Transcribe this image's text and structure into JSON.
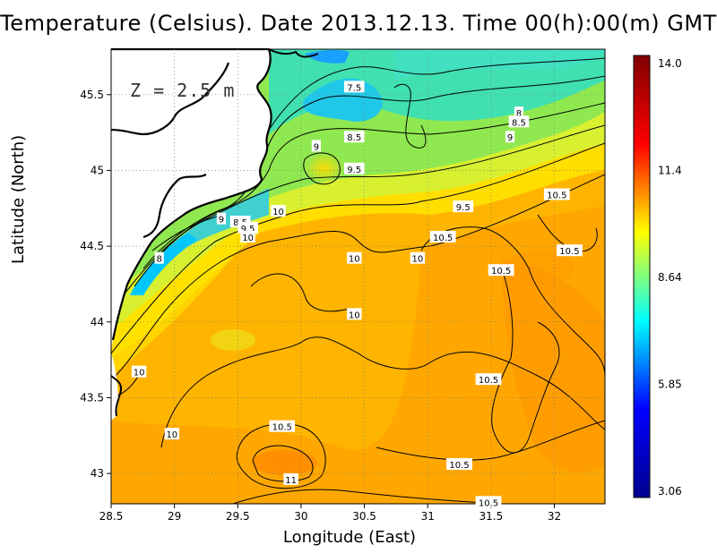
{
  "title": "Temperature (Celsius). Date 2013.12.13. Time 00(h):00(m)  GMT",
  "depth_label": "Z  =  2.5  m",
  "xlabel": "Longitude (East)",
  "ylabel": "Latitude (North)",
  "x_ticks": [
    "28.5",
    "29",
    "29.5",
    "30",
    "30.5",
    "31",
    "31.5",
    "32"
  ],
  "y_ticks": [
    "43",
    "43.5",
    "44",
    "44.5",
    "45",
    "45.5"
  ],
  "colorbar": {
    "ticks": [
      "14.0",
      "11.4",
      "8.64",
      "5.85",
      "3.06"
    ],
    "min": 3.06,
    "max": 14.0,
    "colormap": [
      "#00008f",
      "#0000ff",
      "#00ffff",
      "#ffff00",
      "#ff0000",
      "#800000"
    ]
  },
  "contour_labels": [
    {
      "text": "7.5",
      "lon": 30.42,
      "lat": 45.55
    },
    {
      "text": "8",
      "lon": 31.72,
      "lat": 45.38
    },
    {
      "text": "8.5",
      "lon": 31.72,
      "lat": 45.32
    },
    {
      "text": "8.5",
      "lon": 30.42,
      "lat": 45.22
    },
    {
      "text": "9",
      "lon": 31.65,
      "lat": 45.22
    },
    {
      "text": "9",
      "lon": 30.12,
      "lat": 45.16
    },
    {
      "text": "9.5",
      "lon": 30.42,
      "lat": 45.01
    },
    {
      "text": "9.5",
      "lon": 31.28,
      "lat": 44.76
    },
    {
      "text": "10.5",
      "lon": 32.02,
      "lat": 44.84
    },
    {
      "text": "10",
      "lon": 29.82,
      "lat": 44.73
    },
    {
      "text": "9",
      "lon": 29.37,
      "lat": 44.68
    },
    {
      "text": "8.5",
      "lon": 29.52,
      "lat": 44.66
    },
    {
      "text": "9.5",
      "lon": 29.58,
      "lat": 44.62
    },
    {
      "text": "10",
      "lon": 29.58,
      "lat": 44.56
    },
    {
      "text": "10.5",
      "lon": 31.12,
      "lat": 44.56
    },
    {
      "text": "10.5",
      "lon": 32.12,
      "lat": 44.47
    },
    {
      "text": "8",
      "lon": 28.88,
      "lat": 44.42
    },
    {
      "text": "10",
      "lon": 30.42,
      "lat": 44.42
    },
    {
      "text": "10",
      "lon": 30.92,
      "lat": 44.42
    },
    {
      "text": "10.5",
      "lon": 31.58,
      "lat": 44.34
    },
    {
      "text": "10",
      "lon": 30.42,
      "lat": 44.05
    },
    {
      "text": "10",
      "lon": 28.72,
      "lat": 43.67
    },
    {
      "text": "10.5",
      "lon": 31.48,
      "lat": 43.62
    },
    {
      "text": "10",
      "lon": 28.98,
      "lat": 43.26
    },
    {
      "text": "10.5",
      "lon": 29.85,
      "lat": 43.31
    },
    {
      "text": "10.5",
      "lon": 31.25,
      "lat": 43.06
    },
    {
      "text": "11",
      "lon": 29.92,
      "lat": 42.96
    },
    {
      "text": "10.5",
      "lon": 31.48,
      "lat": 42.81
    }
  ]
}
